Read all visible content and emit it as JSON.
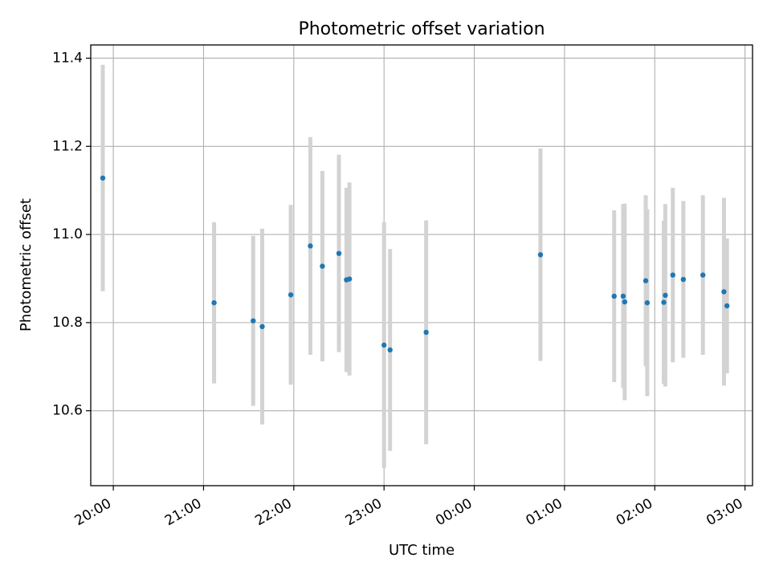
{
  "chart_data": {
    "type": "scatter",
    "title": "Photometric offset variation",
    "xlabel": "UTC time",
    "ylabel": "Photometric offset",
    "xlim": [
      "19:45",
      "03:05"
    ],
    "ylim": [
      10.43,
      11.43
    ],
    "x_ticks": [
      "20:00",
      "21:00",
      "22:00",
      "23:00",
      "00:00",
      "01:00",
      "02:00",
      "03:00"
    ],
    "y_ticks": [
      "10.6",
      "10.8",
      "11.0",
      "11.2",
      "11.4"
    ],
    "grid": true,
    "colors": {
      "marker": "#1f77b4",
      "errorbar": "#d3d3d3",
      "grid": "#b0b0b0"
    },
    "points": [
      {
        "time": "19:53",
        "value": 11.128,
        "err": 0.257
      },
      {
        "time": "21:07",
        "value": 10.845,
        "err": 0.183
      },
      {
        "time": "21:33",
        "value": 10.804,
        "err": 0.193
      },
      {
        "time": "21:39",
        "value": 10.791,
        "err": 0.222
      },
      {
        "time": "21:58",
        "value": 10.863,
        "err": 0.204
      },
      {
        "time": "22:11",
        "value": 10.974,
        "err": 0.247
      },
      {
        "time": "22:19",
        "value": 10.928,
        "err": 0.216
      },
      {
        "time": "22:30",
        "value": 10.957,
        "err": 0.224
      },
      {
        "time": "22:35",
        "value": 10.897,
        "err": 0.209
      },
      {
        "time": "22:37",
        "value": 10.899,
        "err": 0.219
      },
      {
        "time": "23:00",
        "value": 10.749,
        "err": 0.279
      },
      {
        "time": "23:04",
        "value": 10.738,
        "err": 0.229
      },
      {
        "time": "23:28",
        "value": 10.778,
        "err": 0.254
      },
      {
        "time": "00:44",
        "value": 10.954,
        "err": 0.241
      },
      {
        "time": "01:33",
        "value": 10.86,
        "err": 0.195
      },
      {
        "time": "01:39",
        "value": 10.86,
        "err": 0.209
      },
      {
        "time": "01:40",
        "value": 10.847,
        "err": 0.223
      },
      {
        "time": "01:54",
        "value": 10.895,
        "err": 0.194
      },
      {
        "time": "01:55",
        "value": 10.845,
        "err": 0.212
      },
      {
        "time": "02:06",
        "value": 10.846,
        "err": 0.185
      },
      {
        "time": "02:07",
        "value": 10.862,
        "err": 0.207
      },
      {
        "time": "02:12",
        "value": 10.908,
        "err": 0.198
      },
      {
        "time": "02:19",
        "value": 10.898,
        "err": 0.178
      },
      {
        "time": "02:32",
        "value": 10.908,
        "err": 0.181
      },
      {
        "time": "02:46",
        "value": 10.87,
        "err": 0.213
      },
      {
        "time": "02:48",
        "value": 10.838,
        "err": 0.153
      }
    ]
  }
}
